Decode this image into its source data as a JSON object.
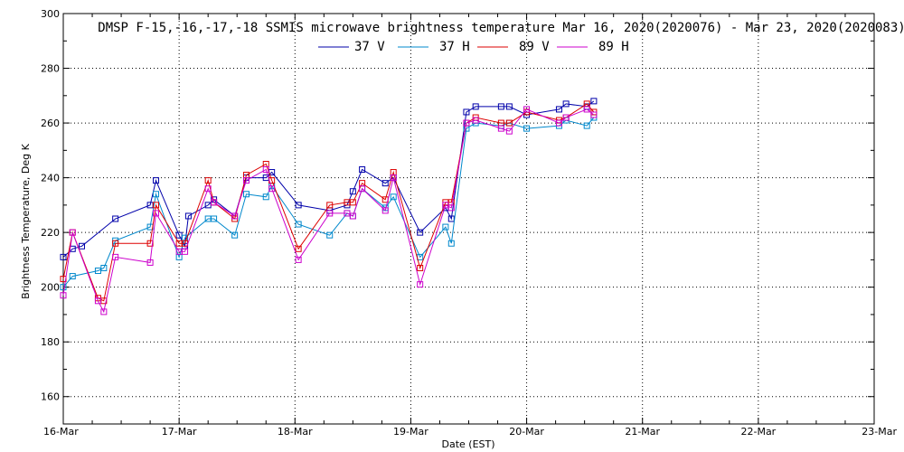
{
  "chart_data": {
    "type": "line",
    "title": "DMSP F-15,-16,-17,-18 SSMIS microwave brightness temperature Mar 16, 2020(2020076) - Mar 23, 2020(2020083)",
    "xlabel": "Date (EST)",
    "ylabel": "Brightness Temperature, Deg K",
    "xlim": [
      0,
      7
    ],
    "ylim": [
      150,
      300
    ],
    "x_ticks": [
      0,
      1,
      2,
      3,
      4,
      5,
      6,
      7
    ],
    "x_tick_labels": [
      "16-Mar",
      "17-Mar",
      "18-Mar",
      "19-Mar",
      "20-Mar",
      "21-Mar",
      "22-Mar",
      "23-Mar"
    ],
    "y_ticks": [
      160,
      180,
      200,
      220,
      240,
      260,
      280,
      300
    ],
    "grid": true,
    "legend_position": "top-center",
    "series": [
      {
        "name": "37 V",
        "color": "#0000aa",
        "points": [
          [
            0.0,
            211
          ],
          [
            0.08,
            214
          ],
          [
            0.16,
            215
          ],
          [
            0.45,
            225
          ],
          [
            0.75,
            230
          ],
          [
            0.8,
            239
          ],
          [
            1.0,
            219
          ],
          [
            1.05,
            215
          ],
          [
            1.08,
            226
          ],
          [
            1.25,
            230
          ],
          [
            1.3,
            232
          ],
          [
            1.48,
            226
          ],
          [
            1.58,
            240
          ],
          [
            1.75,
            240
          ],
          [
            1.8,
            242
          ],
          [
            2.03,
            230
          ],
          [
            2.3,
            228
          ],
          [
            2.45,
            230
          ],
          [
            2.5,
            235
          ],
          [
            2.58,
            243
          ],
          [
            2.78,
            238
          ],
          [
            2.85,
            240
          ],
          [
            3.08,
            220
          ],
          [
            3.3,
            229
          ],
          [
            3.35,
            225
          ],
          [
            3.48,
            264
          ],
          [
            3.56,
            266
          ],
          [
            3.78,
            266
          ],
          [
            3.85,
            266
          ],
          [
            4.0,
            263
          ],
          [
            4.28,
            265
          ],
          [
            4.34,
            267
          ],
          [
            4.52,
            266
          ],
          [
            4.58,
            268
          ]
        ]
      },
      {
        "name": "37 H",
        "color": "#0088cc",
        "points": [
          [
            0.0,
            200
          ],
          [
            0.08,
            204
          ],
          [
            0.3,
            206
          ],
          [
            0.35,
            207
          ],
          [
            0.45,
            217
          ],
          [
            0.75,
            222
          ],
          [
            0.8,
            234
          ],
          [
            1.0,
            211
          ],
          [
            1.05,
            218
          ],
          [
            1.25,
            225
          ],
          [
            1.3,
            225
          ],
          [
            1.48,
            219
          ],
          [
            1.58,
            234
          ],
          [
            1.75,
            233
          ],
          [
            1.8,
            237
          ],
          [
            2.03,
            223
          ],
          [
            2.3,
            219
          ],
          [
            2.45,
            227
          ],
          [
            2.5,
            226
          ],
          [
            2.58,
            236
          ],
          [
            2.78,
            229
          ],
          [
            2.85,
            233
          ],
          [
            3.08,
            211
          ],
          [
            3.3,
            222
          ],
          [
            3.35,
            216
          ],
          [
            3.48,
            258
          ],
          [
            3.56,
            260
          ],
          [
            3.78,
            259
          ],
          [
            3.85,
            260
          ],
          [
            4.0,
            258
          ],
          [
            4.28,
            259
          ],
          [
            4.34,
            261
          ],
          [
            4.52,
            259
          ],
          [
            4.58,
            262
          ]
        ]
      },
      {
        "name": "89 V",
        "color": "#dd0000",
        "points": [
          [
            0.0,
            203
          ],
          [
            0.08,
            220
          ],
          [
            0.3,
            196
          ],
          [
            0.35,
            195
          ],
          [
            0.45,
            216
          ],
          [
            0.75,
            216
          ],
          [
            0.8,
            230
          ],
          [
            1.0,
            216
          ],
          [
            1.05,
            216
          ],
          [
            1.25,
            239
          ],
          [
            1.3,
            231
          ],
          [
            1.48,
            225
          ],
          [
            1.58,
            241
          ],
          [
            1.75,
            245
          ],
          [
            1.8,
            239
          ],
          [
            2.03,
            214
          ],
          [
            2.3,
            230
          ],
          [
            2.45,
            231
          ],
          [
            2.5,
            231
          ],
          [
            2.58,
            238
          ],
          [
            2.78,
            232
          ],
          [
            2.85,
            242
          ],
          [
            3.08,
            207
          ],
          [
            3.3,
            231
          ],
          [
            3.35,
            231
          ],
          [
            3.48,
            260
          ],
          [
            3.56,
            262
          ],
          [
            3.78,
            260
          ],
          [
            3.85,
            260
          ],
          [
            4.0,
            264
          ],
          [
            4.28,
            261
          ],
          [
            4.34,
            262
          ],
          [
            4.52,
            267
          ],
          [
            4.58,
            264
          ]
        ]
      },
      {
        "name": "89 H",
        "color": "#cc00cc",
        "points": [
          [
            0.0,
            197
          ],
          [
            0.08,
            220
          ],
          [
            0.3,
            195
          ],
          [
            0.35,
            191
          ],
          [
            0.45,
            211
          ],
          [
            0.75,
            209
          ],
          [
            0.8,
            227
          ],
          [
            1.0,
            213
          ],
          [
            1.05,
            213
          ],
          [
            1.25,
            236
          ],
          [
            1.3,
            231
          ],
          [
            1.48,
            226
          ],
          [
            1.58,
            239
          ],
          [
            1.75,
            243
          ],
          [
            1.8,
            236
          ],
          [
            2.03,
            210
          ],
          [
            2.3,
            227
          ],
          [
            2.45,
            227
          ],
          [
            2.5,
            226
          ],
          [
            2.58,
            236
          ],
          [
            2.78,
            228
          ],
          [
            2.85,
            240
          ],
          [
            3.08,
            201
          ],
          [
            3.3,
            230
          ],
          [
            3.35,
            229
          ],
          [
            3.48,
            260
          ],
          [
            3.56,
            261
          ],
          [
            3.78,
            258
          ],
          [
            3.85,
            257
          ],
          [
            4.0,
            265
          ],
          [
            4.28,
            260
          ],
          [
            4.34,
            262
          ],
          [
            4.52,
            265
          ],
          [
            4.58,
            263
          ]
        ]
      }
    ]
  }
}
